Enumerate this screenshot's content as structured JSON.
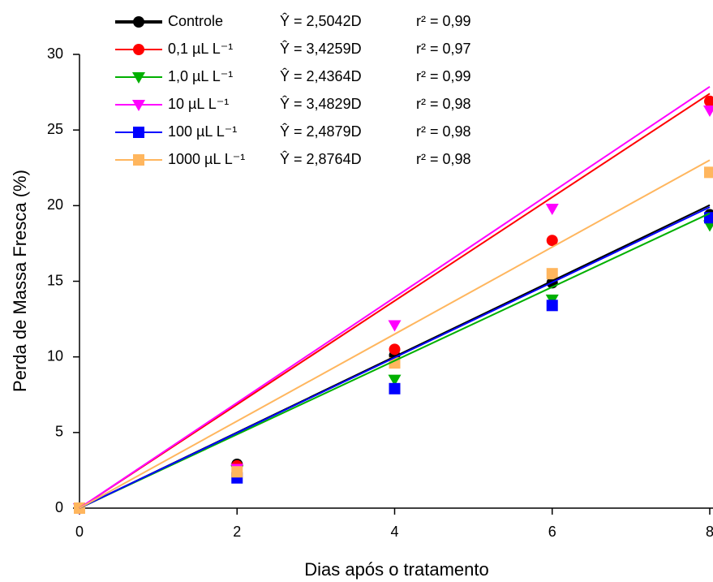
{
  "chart_data": {
    "type": "scatter",
    "x_label": "Dias após o tratamento",
    "y_label": "Perda de Massa Fresca (%)",
    "x": [
      0,
      2,
      4,
      6,
      8
    ],
    "xlim": [
      0,
      8
    ],
    "xticks": [
      0,
      2,
      4,
      6,
      8
    ],
    "ylim": [
      0,
      30
    ],
    "yticks": [
      0,
      5,
      10,
      15,
      20,
      25,
      30
    ],
    "series": [
      {
        "name": "Controle",
        "color": "#000000",
        "marker": "circle",
        "values": [
          0,
          2.9,
          10.1,
          14.9,
          19.4
        ],
        "equation": "Ŷ = 2,5042D",
        "slope": 2.5042,
        "r_squared": "r² = 0,99"
      },
      {
        "name": "0,1 µL L⁻¹",
        "color": "#ff0000",
        "marker": "circle",
        "values": [
          0,
          2.8,
          10.5,
          17.7,
          26.9
        ],
        "equation": "Ŷ = 3,4259D",
        "slope": 3.4259,
        "r_squared": "r² = 0,97"
      },
      {
        "name": "1,0 µL L⁻¹",
        "color": "#00b000",
        "marker": "triangle-down",
        "values": [
          0,
          2.5,
          8.5,
          13.8,
          18.7
        ],
        "equation": "Ŷ = 2,4364D",
        "slope": 2.4364,
        "r_squared": "r² = 0,99"
      },
      {
        "name": "10 µL L⁻¹",
        "color": "#ff00ff",
        "marker": "triangle-down",
        "values": [
          0,
          2.6,
          12.1,
          19.8,
          26.3
        ],
        "equation": "Ŷ = 3,4829D",
        "slope": 3.4829,
        "r_squared": "r² = 0,98"
      },
      {
        "name": "100 µL L⁻¹",
        "color": "#0000ff",
        "marker": "square",
        "values": [
          0,
          2.0,
          7.9,
          13.4,
          19.2
        ],
        "equation": "Ŷ = 2,4879D",
        "slope": 2.4879,
        "r_squared": "r² = 0,98"
      },
      {
        "name": "1000 µL L⁻¹",
        "color": "#ffb65e",
        "marker": "square",
        "values": [
          0,
          2.4,
          9.6,
          15.5,
          22.2
        ],
        "equation": "Ŷ = 2,8764D",
        "slope": 2.8764,
        "r_squared": "r² = 0,98"
      }
    ]
  }
}
